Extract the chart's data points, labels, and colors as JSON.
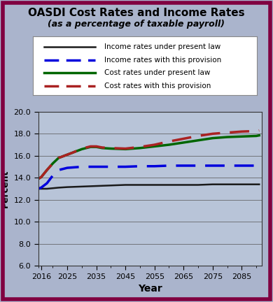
{
  "title_line1": "OASDI Cost Rates and Income Rates",
  "title_line2": "(as a percentage of taxable payroll)",
  "xlabel": "Year",
  "ylabel": "Percent",
  "xlim": [
    2015,
    2092
  ],
  "ylim": [
    6.0,
    20.0
  ],
  "yticks": [
    6.0,
    8.0,
    10.0,
    12.0,
    14.0,
    16.0,
    18.0,
    20.0
  ],
  "xticks": [
    2016,
    2025,
    2035,
    2045,
    2055,
    2065,
    2075,
    2085
  ],
  "xticklabels": [
    "2016",
    "2025",
    "2035",
    "2045",
    "2055",
    "2065",
    "2075",
    "2085"
  ],
  "background_color": "#aab4cc",
  "plot_bg_color": "#b8c4d8",
  "border_color": "#800040",
  "legend_labels": [
    "Income rates under present law",
    "Income rates with this provision",
    "Cost rates under present law",
    "Cost rates with this provision"
  ],
  "income_present_law": {
    "x": [
      2015,
      2016,
      2018,
      2020,
      2022,
      2025,
      2030,
      2035,
      2040,
      2045,
      2050,
      2055,
      2060,
      2065,
      2070,
      2075,
      2080,
      2085,
      2090,
      2091
    ],
    "y": [
      13.0,
      13.0,
      13.0,
      13.05,
      13.1,
      13.15,
      13.2,
      13.25,
      13.3,
      13.35,
      13.35,
      13.35,
      13.35,
      13.35,
      13.35,
      13.4,
      13.4,
      13.4,
      13.4,
      13.4
    ],
    "color": "#1a1a1a",
    "linestyle": "solid",
    "linewidth": 1.8
  },
  "income_provision": {
    "x": [
      2015,
      2016,
      2018,
      2020,
      2022,
      2025,
      2030,
      2035,
      2040,
      2045,
      2050,
      2055,
      2060,
      2065,
      2070,
      2075,
      2080,
      2085,
      2090,
      2091
    ],
    "y": [
      13.0,
      13.1,
      13.5,
      14.2,
      14.7,
      14.9,
      15.0,
      15.0,
      15.0,
      15.0,
      15.05,
      15.05,
      15.1,
      15.1,
      15.1,
      15.1,
      15.1,
      15.1,
      15.1,
      15.1
    ],
    "color": "#0000dd",
    "linestyle": "dashed",
    "linewidth": 2.5
  },
  "cost_present_law": {
    "x": [
      2015,
      2016,
      2018,
      2020,
      2022,
      2025,
      2027,
      2030,
      2033,
      2035,
      2037,
      2040,
      2045,
      2050,
      2055,
      2060,
      2065,
      2070,
      2075,
      2080,
      2085,
      2090,
      2091
    ],
    "y": [
      13.9,
      14.05,
      14.7,
      15.3,
      15.8,
      16.1,
      16.3,
      16.6,
      16.8,
      16.8,
      16.7,
      16.65,
      16.6,
      16.7,
      16.85,
      17.0,
      17.2,
      17.4,
      17.6,
      17.7,
      17.75,
      17.8,
      17.85
    ],
    "color": "#006600",
    "linestyle": "solid",
    "linewidth": 2.5
  },
  "cost_provision": {
    "x": [
      2015,
      2016,
      2018,
      2020,
      2022,
      2025,
      2027,
      2030,
      2033,
      2035,
      2037,
      2040,
      2045,
      2050,
      2055,
      2060,
      2065,
      2070,
      2075,
      2080,
      2085,
      2090,
      2091
    ],
    "y": [
      13.9,
      14.05,
      14.7,
      15.3,
      15.8,
      16.1,
      16.3,
      16.65,
      16.85,
      16.85,
      16.75,
      16.7,
      16.65,
      16.8,
      17.0,
      17.3,
      17.55,
      17.8,
      18.0,
      18.1,
      18.2,
      18.25,
      18.3
    ],
    "color": "#aa2222",
    "linestyle": "dashed",
    "linewidth": 2.5
  }
}
